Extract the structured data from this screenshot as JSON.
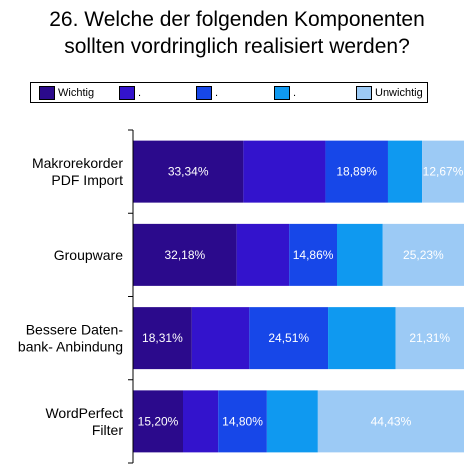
{
  "title": {
    "line1": "26.  Welche der folgenden Komponenten",
    "line2": "sollten vordringlich realisiert werden?"
  },
  "chart_data": {
    "type": "bar",
    "orientation": "horizontal",
    "stacked": true,
    "percent_stacked": true,
    "categories": [
      [
        "Makrorekorder",
        "PDF Import"
      ],
      [
        "Groupware"
      ],
      [
        "Bessere Daten-",
        "bank- Anbindung"
      ],
      [
        "WordPerfect",
        "Filter"
      ]
    ],
    "series": [
      {
        "name": "Wichtig",
        "color": "#2b0a8c",
        "values": [
          33.34,
          32.18,
          18.31,
          15.2
        ]
      },
      {
        "name": ".",
        "color": "#3313cc",
        "values": [
          24.8,
          16.3,
          17.9,
          10.7
        ]
      },
      {
        "name": ".",
        "color": "#1747e8",
        "values": [
          18.89,
          14.86,
          24.51,
          14.8
        ]
      },
      {
        "name": ".",
        "color": "#0f99f0",
        "values": [
          10.3,
          14.2,
          21.0,
          15.5
        ]
      },
      {
        "name": "Unwichtig",
        "color": "#9ccaf5",
        "values": [
          12.67,
          25.23,
          21.31,
          44.43
        ]
      }
    ],
    "data_labels": [
      [
        "33,34%",
        "",
        "18,89%",
        "",
        "12,67%"
      ],
      [
        "32,18%",
        "",
        "14,86%",
        "",
        "25,23%"
      ],
      [
        "18,31%",
        "",
        "24,51%",
        "",
        "21,31%"
      ],
      [
        "15,20%",
        "",
        "14,80%",
        "",
        "44,43%"
      ]
    ],
    "xlim": [
      0,
      100
    ],
    "grid": false,
    "legend_position": "top"
  }
}
